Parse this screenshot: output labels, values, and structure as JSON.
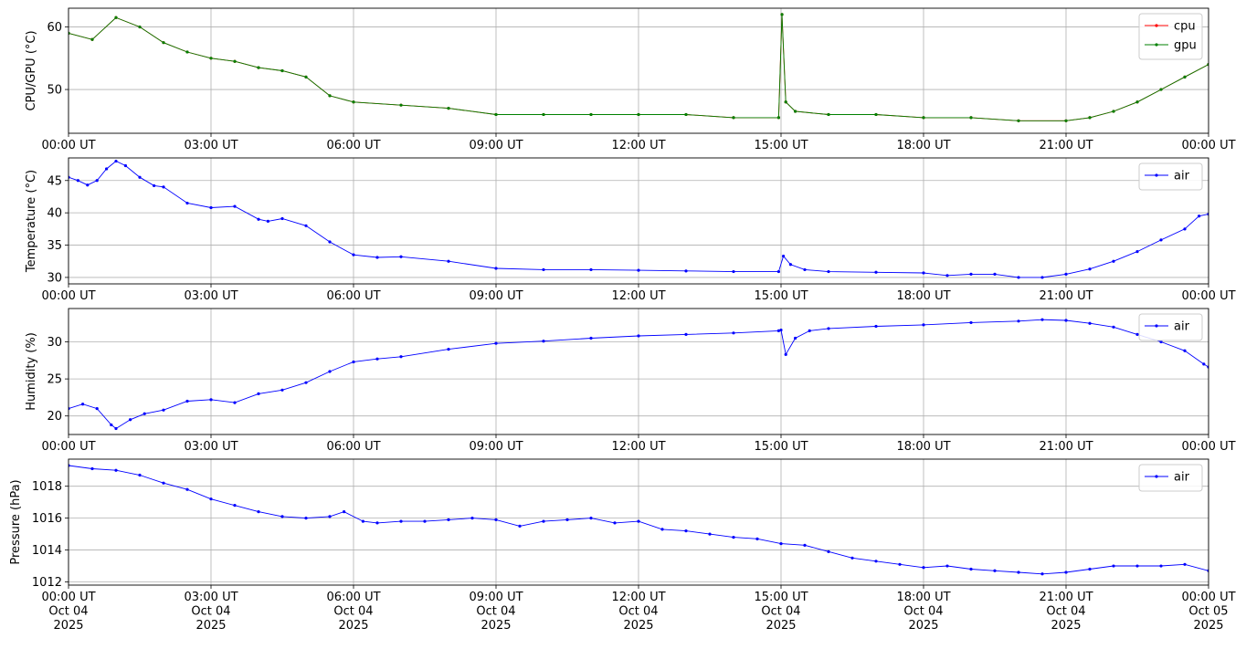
{
  "chart_data": [
    {
      "type": "line",
      "ylabel": "CPU/GPU (°C)",
      "ylim": [
        43,
        63
      ],
      "yticks": [
        50,
        60
      ],
      "xlim": [
        "00:00",
        "24:00"
      ],
      "xtick_labels": [
        "00:00 UT",
        "03:00 UT",
        "06:00 UT",
        "09:00 UT",
        "12:00 UT",
        "15:00 UT",
        "18:00 UT",
        "21:00 UT",
        "00:00 UT"
      ],
      "grid": true,
      "legend": "top-right",
      "series": [
        {
          "name": "cpu",
          "color": "#ff0000",
          "x_hours": [
            0,
            0.5,
            1.0,
            1.5,
            2.0,
            2.5,
            3.0,
            3.5,
            4.0,
            4.5,
            5.0,
            5.5,
            6.0,
            7.0,
            8.0,
            9.0,
            10.0,
            11.0,
            12.0,
            13.0,
            14.0,
            14.95,
            15.02,
            15.1,
            15.3,
            16.0,
            17.0,
            18.0,
            19.0,
            20.0,
            21.0,
            21.5,
            22.0,
            22.5,
            23.0,
            23.5,
            24.0
          ],
          "values": [
            59,
            58,
            61.5,
            60,
            57.5,
            56,
            55,
            54.5,
            53.5,
            53,
            52,
            49,
            48,
            47.5,
            47,
            46,
            46,
            46,
            46,
            46,
            45.5,
            45.5,
            62,
            48,
            46.5,
            46,
            46,
            45.5,
            45.5,
            45,
            45,
            45.5,
            46.5,
            48,
            50,
            52,
            54
          ]
        },
        {
          "name": "gpu",
          "color": "#008000",
          "x_hours": [
            0,
            0.5,
            1.0,
            1.5,
            2.0,
            2.5,
            3.0,
            3.5,
            4.0,
            4.5,
            5.0,
            5.5,
            6.0,
            7.0,
            8.0,
            9.0,
            10.0,
            11.0,
            12.0,
            13.0,
            14.0,
            14.95,
            15.02,
            15.1,
            15.3,
            16.0,
            17.0,
            18.0,
            19.0,
            20.0,
            21.0,
            21.5,
            22.0,
            22.5,
            23.0,
            23.5,
            24.0
          ],
          "values": [
            59,
            58,
            61.5,
            60,
            57.5,
            56,
            55,
            54.5,
            53.5,
            53,
            52,
            49,
            48,
            47.5,
            47,
            46,
            46,
            46,
            46,
            46,
            45.5,
            45.5,
            62,
            48,
            46.5,
            46,
            46,
            45.5,
            45.5,
            45,
            45,
            45.5,
            46.5,
            48,
            50,
            52,
            54
          ]
        }
      ]
    },
    {
      "type": "line",
      "ylabel": "Temperature (°C)",
      "ylim": [
        29,
        48.5
      ],
      "yticks": [
        30,
        35,
        40,
        45
      ],
      "xlim": [
        "00:00",
        "24:00"
      ],
      "xtick_labels": [
        "00:00 UT",
        "03:00 UT",
        "06:00 UT",
        "09:00 UT",
        "12:00 UT",
        "15:00 UT",
        "18:00 UT",
        "21:00 UT",
        "00:00 UT"
      ],
      "grid": true,
      "legend": "top-right",
      "series": [
        {
          "name": "air",
          "color": "#0000ff",
          "x_hours": [
            0,
            0.2,
            0.4,
            0.6,
            0.8,
            1.0,
            1.2,
            1.5,
            1.8,
            2.0,
            2.5,
            3.0,
            3.5,
            4.0,
            4.2,
            4.5,
            5.0,
            5.5,
            6.0,
            6.5,
            7.0,
            8.0,
            9.0,
            10.0,
            11.0,
            12.0,
            13.0,
            14.0,
            14.95,
            15.05,
            15.2,
            15.5,
            16.0,
            17.0,
            18.0,
            18.5,
            19.0,
            19.5,
            20.0,
            20.5,
            21.0,
            21.5,
            22.0,
            22.5,
            23.0,
            23.5,
            23.8,
            24.0
          ],
          "values": [
            45.5,
            45,
            44.3,
            45,
            46.8,
            48,
            47.3,
            45.5,
            44.2,
            44,
            41.5,
            40.8,
            41,
            39,
            38.7,
            39.1,
            38,
            35.5,
            33.5,
            33.1,
            33.2,
            32.5,
            31.4,
            31.2,
            31.2,
            31.1,
            31.0,
            30.9,
            30.9,
            33.3,
            32,
            31.2,
            30.9,
            30.8,
            30.7,
            30.3,
            30.5,
            30.5,
            30.0,
            30.0,
            30.5,
            31.3,
            32.5,
            34,
            35.8,
            37.5,
            39.5,
            39.8
          ]
        }
      ]
    },
    {
      "type": "line",
      "ylabel": "Humidity (%)",
      "ylim": [
        17.5,
        34.5
      ],
      "yticks": [
        20,
        25,
        30
      ],
      "xlim": [
        "00:00",
        "24:00"
      ],
      "xtick_labels": [
        "00:00 UT",
        "03:00 UT",
        "06:00 UT",
        "09:00 UT",
        "12:00 UT",
        "15:00 UT",
        "18:00 UT",
        "21:00 UT",
        "00:00 UT"
      ],
      "grid": true,
      "legend": "top-right",
      "series": [
        {
          "name": "air",
          "color": "#0000ff",
          "x_hours": [
            0,
            0.3,
            0.6,
            0.9,
            1.0,
            1.3,
            1.6,
            2.0,
            2.5,
            3.0,
            3.5,
            4.0,
            4.5,
            5.0,
            5.5,
            6.0,
            6.5,
            7.0,
            8.0,
            9.0,
            10.0,
            11.0,
            12.0,
            13.0,
            14.0,
            14.95,
            15.0,
            15.1,
            15.3,
            15.6,
            16.0,
            17.0,
            18.0,
            19.0,
            20.0,
            20.5,
            21.0,
            21.5,
            22.0,
            22.5,
            23.0,
            23.5,
            23.9,
            24.0
          ],
          "values": [
            21,
            21.6,
            21,
            18.8,
            18.3,
            19.5,
            20.3,
            20.8,
            22,
            22.2,
            21.8,
            23,
            23.5,
            24.5,
            26,
            27.3,
            27.7,
            28,
            29,
            29.8,
            30.1,
            30.5,
            30.8,
            31,
            31.2,
            31.5,
            31.6,
            28.3,
            30.5,
            31.5,
            31.8,
            32.1,
            32.3,
            32.6,
            32.8,
            33,
            32.9,
            32.5,
            32,
            31,
            30,
            28.8,
            27,
            26.6
          ]
        }
      ]
    },
    {
      "type": "line",
      "ylabel": "Pressure (hPa)",
      "ylim": [
        1011.8,
        1019.7
      ],
      "yticks": [
        1012,
        1014,
        1016,
        1018
      ],
      "xlim": [
        "00:00",
        "24:00"
      ],
      "xtick_labels": [
        "00:00 UT\nOct 04\n2025",
        "03:00 UT\nOct 04\n2025",
        "06:00 UT\nOct 04\n2025",
        "09:00 UT\nOct 04\n2025",
        "12:00 UT\nOct 04\n2025",
        "15:00 UT\nOct 04\n2025",
        "18:00 UT\nOct 04\n2025",
        "21:00 UT\nOct 04\n2025",
        "00:00 UT\nOct 05\n2025"
      ],
      "grid": true,
      "legend": "top-right",
      "series": [
        {
          "name": "air",
          "color": "#0000ff",
          "x_hours": [
            0,
            0.5,
            1.0,
            1.5,
            2.0,
            2.5,
            3.0,
            3.5,
            4.0,
            4.5,
            5.0,
            5.5,
            5.8,
            6.2,
            6.5,
            7.0,
            7.5,
            8.0,
            8.5,
            9.0,
            9.5,
            10.0,
            10.5,
            11.0,
            11.5,
            12.0,
            12.5,
            13.0,
            13.5,
            14.0,
            14.5,
            15.0,
            15.5,
            16.0,
            16.5,
            17.0,
            17.5,
            18.0,
            18.5,
            19.0,
            19.5,
            20.0,
            20.5,
            21.0,
            21.5,
            22.0,
            22.5,
            23.0,
            23.5,
            24.0
          ],
          "values": [
            1019.3,
            1019.1,
            1019.0,
            1018.7,
            1018.2,
            1017.8,
            1017.2,
            1016.8,
            1016.4,
            1016.1,
            1016.0,
            1016.1,
            1016.4,
            1015.8,
            1015.7,
            1015.8,
            1015.8,
            1015.9,
            1016.0,
            1015.9,
            1015.5,
            1015.8,
            1015.9,
            1016.0,
            1015.7,
            1015.8,
            1015.3,
            1015.2,
            1015.0,
            1014.8,
            1014.7,
            1014.4,
            1014.3,
            1013.9,
            1013.5,
            1013.3,
            1013.1,
            1012.9,
            1013.0,
            1012.8,
            1012.7,
            1012.6,
            1012.5,
            1012.6,
            1012.8,
            1013.0,
            1013.0,
            1013.0,
            1013.1,
            1012.7
          ]
        }
      ]
    }
  ]
}
